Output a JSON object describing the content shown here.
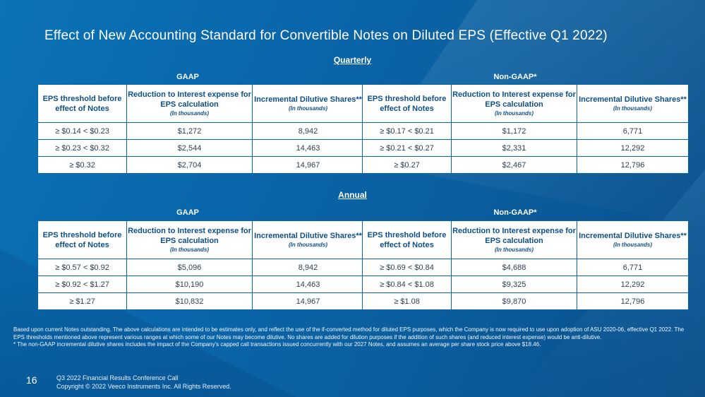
{
  "title": "Effect of New Accounting Standard for Convertible Notes on Diluted EPS (Effective Q1 2022)",
  "quarterly": {
    "section_label": "Quarterly",
    "gaap": {
      "label": "GAAP",
      "headers": [
        {
          "main": "EPS threshold before effect of Notes",
          "sub": ""
        },
        {
          "main": "Reduction to Interest expense for EPS calculation",
          "sub": "(In thousands)"
        },
        {
          "main": "Incremental Dilutive Shares**",
          "sub": "(In thousands)"
        }
      ],
      "rows": [
        [
          "≥  $0.14 < $0.23",
          "$1,272",
          "8,942"
        ],
        [
          "≥  $0.23 < $0.32",
          "$2,544",
          "14,463"
        ],
        [
          "≥  $0.32",
          "$2,704",
          "14,967"
        ]
      ]
    },
    "nongaap": {
      "label": "Non-GAAP*",
      "headers": [
        {
          "main": "EPS threshold before effect of Notes",
          "sub": ""
        },
        {
          "main": "Reduction to Interest expense for EPS calculation",
          "sub": "(In thousands)"
        },
        {
          "main": "Incremental Dilutive Shares**",
          "sub": "(In thousands)"
        }
      ],
      "rows": [
        [
          "≥  $0.17 < $0.21",
          "$1,172",
          "6,771"
        ],
        [
          "≥  $0.21 < $0.27",
          "$2,331",
          "12,292"
        ],
        [
          "≥  $0.27",
          "$2,467",
          "12,796"
        ]
      ]
    }
  },
  "annual": {
    "section_label": "Annual",
    "gaap": {
      "label": "GAAP",
      "headers": [
        {
          "main": "EPS threshold before effect of Notes",
          "sub": ""
        },
        {
          "main": "Reduction to Interest expense for EPS calculation",
          "sub": "(In thousands)"
        },
        {
          "main": "Incremental Dilutive Shares**",
          "sub": "(In thousands)"
        }
      ],
      "rows": [
        [
          "≥  $0.57 < $0.92",
          "$5,096",
          "8,942"
        ],
        [
          "≥  $0.92 < $1.27",
          "$10,190",
          "14,463"
        ],
        [
          "≥  $1.27",
          "$10,832",
          "14,967"
        ]
      ]
    },
    "nongaap": {
      "label": "Non-GAAP*",
      "headers": [
        {
          "main": "EPS threshold before effect of Notes",
          "sub": ""
        },
        {
          "main": "Reduction to Interest expense for EPS calculation",
          "sub": "(In thousands)"
        },
        {
          "main": "Incremental Dilutive Shares**",
          "sub": "(In thousands)"
        }
      ],
      "rows": [
        [
          "≥  $0.69 < $0.84",
          "$4,688",
          "6,771"
        ],
        [
          "≥  $0.84 < $1.08",
          "$9,325",
          "12,292"
        ],
        [
          "≥  $1.08",
          "$9,870",
          "12,796"
        ]
      ]
    }
  },
  "footnotes": [
    "Based upon current Notes outstanding. The above calculations are intended to be estimates only, and reflect the use of the if-converted method for diluted EPS purposes, which the Company is now required to use upon adoption of ASU 2020-06, effective Q1 2022. The EPS thresholds mentioned above represent various ranges at which some of our Notes may become dilutive. No shares are added for dilution purposes if the addition of such shares (and reduced interest expense) would be anti-dilutive.",
    "* The non-GAAP incremental dilutive shares includes the impact of the Company's capped call transactions issued concurrently with our 2027 Notes, and assumes an average per share stock price above $18.46."
  ],
  "footer": {
    "page_number": "16",
    "line1": "Q3 2022 Financial Results Conference Call",
    "line2": "Copyright © 2022 Veeco Instruments Inc. All Rights Reserved."
  }
}
